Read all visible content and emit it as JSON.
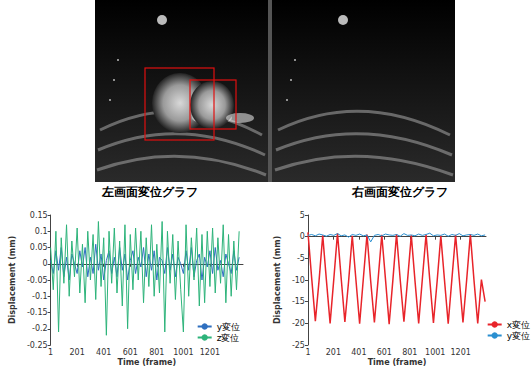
{
  "chart_data": [
    {
      "type": "line",
      "title": "左画面変位グラフ",
      "x_label": "Time (frame)",
      "y_label": "Displacement (mm)",
      "x": [
        1,
        21,
        41,
        61,
        81,
        101,
        121,
        141,
        161,
        181,
        201,
        221,
        241,
        261,
        281,
        301,
        321,
        341,
        361,
        381,
        401,
        421,
        441,
        461,
        481,
        501,
        521,
        541,
        561,
        581,
        601,
        621,
        641,
        661,
        681,
        701,
        721,
        741,
        761,
        781,
        801,
        821,
        841,
        861,
        881,
        901,
        921,
        941,
        961,
        981,
        1001,
        1021,
        1041,
        1061,
        1081,
        1101,
        1121,
        1141,
        1161,
        1181,
        1201,
        1221,
        1241,
        1261,
        1281,
        1301,
        1321,
        1341,
        1361,
        1381,
        1401,
        1421
      ],
      "series": [
        {
          "name": "y変位",
          "color": "#2f6fbf",
          "values": [
            0.01,
            -0.03,
            0.04,
            -0.02,
            0.05,
            -0.04,
            0.02,
            -0.05,
            0.03,
            0.0,
            -0.03,
            0.04,
            -0.01,
            0.05,
            -0.04,
            0.02,
            -0.03,
            0.06,
            -0.02,
            0.03,
            -0.05,
            0.01,
            0.04,
            -0.03,
            0.02,
            -0.04,
            0.05,
            -0.02,
            0.03,
            -0.05,
            0.01,
            0.04,
            -0.03,
            0.02,
            -0.01,
            0.05,
            -0.04,
            0.03,
            -0.02,
            0.04,
            -0.05,
            0.02,
            0.01,
            -0.03,
            0.05,
            -0.02,
            0.03,
            -0.04,
            0.02,
            0.0,
            -0.03,
            0.04,
            -0.02,
            0.05,
            -0.04,
            0.01,
            0.03,
            -0.05,
            0.02,
            -0.01,
            0.04,
            -0.03,
            0.05,
            -0.02,
            0.01,
            -0.04,
            0.03,
            0.0,
            -0.03,
            0.04,
            -0.02,
            0.02
          ]
        },
        {
          "name": "z変位",
          "color": "#2db37a",
          "values": [
            0.05,
            -0.08,
            0.1,
            -0.21,
            0.08,
            -0.06,
            0.12,
            -0.1,
            0.07,
            -0.04,
            0.11,
            -0.09,
            0.06,
            -0.12,
            0.1,
            -0.05,
            0.09,
            -0.11,
            0.13,
            -0.07,
            0.08,
            -0.22,
            0.1,
            -0.06,
            0.11,
            -0.09,
            0.07,
            -0.13,
            0.12,
            -0.2,
            0.09,
            -0.08,
            0.11,
            -0.05,
            0.1,
            -0.12,
            0.08,
            -0.07,
            0.12,
            -0.1,
            0.06,
            -0.09,
            0.13,
            -0.21,
            0.1,
            -0.06,
            0.09,
            -0.11,
            0.07,
            -0.08,
            -0.21,
            0.12,
            -0.1,
            0.08,
            -0.05,
            0.11,
            -0.13,
            0.09,
            -0.12,
            0.1,
            -0.07,
            0.11,
            -0.09,
            0.08,
            -0.06,
            0.12,
            -0.12,
            0.09,
            -0.1,
            0.07,
            -0.08,
            0.1
          ]
        }
      ],
      "xlim": [
        1,
        1450
      ],
      "xticks": [
        1,
        201,
        401,
        601,
        801,
        1001,
        1201
      ],
      "ylim": [
        -0.25,
        0.15
      ],
      "yticks": [
        -0.25,
        -0.2,
        -0.15,
        -0.1,
        -0.05,
        0,
        0.05,
        0.1,
        0.15
      ],
      "grid": false,
      "legend": "lower right"
    },
    {
      "type": "line",
      "title": "右画面変位グラフ",
      "x_label": "Time (frame)",
      "y_label": "Displacement (mm)",
      "x": [
        1,
        30,
        59,
        88,
        117,
        146,
        175,
        204,
        233,
        262,
        291,
        320,
        349,
        378,
        407,
        436,
        465,
        494,
        523,
        552,
        581,
        610,
        639,
        668,
        697,
        726,
        755,
        784,
        813,
        842,
        871,
        900,
        929,
        958,
        987,
        1016,
        1045,
        1074,
        1103,
        1132,
        1161,
        1190,
        1219,
        1248,
        1277,
        1306,
        1335,
        1364,
        1393
      ],
      "series": [
        {
          "name": "x変位",
          "color": "#e8242a",
          "values": [
            1.0,
            -9.5,
            -19.5,
            -10.2,
            0.3,
            -10.1,
            -20.0,
            -9.8,
            0.8,
            -9.6,
            -19.7,
            -10.4,
            0.2,
            -10.0,
            -20.1,
            -9.7,
            0.5,
            -10.3,
            -19.8,
            -9.9,
            0.4,
            -9.8,
            -20.2,
            -10.1,
            0.6,
            -10.0,
            -19.6,
            -9.9,
            0.3,
            -10.2,
            -20.0,
            -9.7,
            0.5,
            -9.9,
            -19.9,
            -10.3,
            0.2,
            -10.1,
            -20.1,
            -9.8,
            0.4,
            -9.7,
            -19.8,
            -10.0,
            0.6,
            -10.2,
            -20.0,
            -9.9,
            -15.0
          ]
        },
        {
          "name": "y変位",
          "color": "#2a8fd0",
          "values": [
            0.3,
            0.5,
            0.2,
            0.6,
            0.4,
            0.1,
            0.5,
            0.3,
            0.7,
            0.2,
            0.4,
            -0.1,
            0.5,
            0.3,
            0.6,
            0.2,
            0.4,
            -1.2,
            0.3,
            0.5,
            0.2,
            0.6,
            0.4,
            0.3,
            0.5,
            0.1,
            0.7,
            0.3,
            0.4,
            0.2,
            0.6,
            0.3,
            0.5,
            0.8,
            0.2,
            0.4,
            0.3,
            0.6,
            0.1,
            0.5,
            0.3,
            0.7,
            0.2,
            0.4,
            0.5,
            0.3,
            0.6,
            0.2,
            0.4
          ]
        }
      ],
      "xlim": [
        1,
        1400
      ],
      "xticks": [
        1,
        201,
        401,
        601,
        801,
        1001,
        1201
      ],
      "ylim": [
        -25,
        5
      ],
      "yticks": [
        -25,
        -20,
        -15,
        -10,
        -5,
        0,
        5
      ],
      "grid": false,
      "legend": "lower right"
    }
  ]
}
